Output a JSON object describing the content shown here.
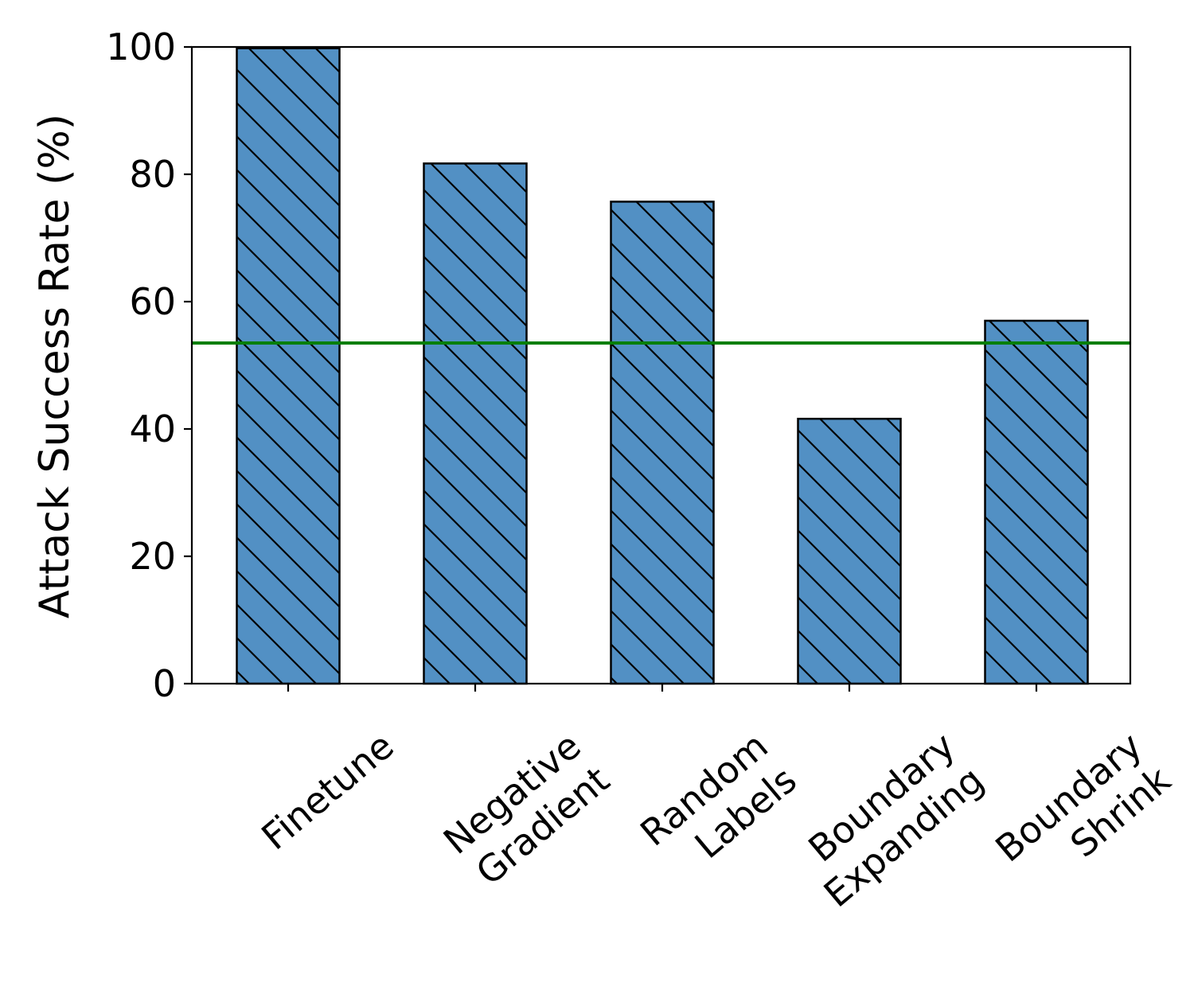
{
  "chart_data": {
    "type": "bar",
    "title": "",
    "xlabel": "",
    "ylabel": "Attack Success Rate (%)",
    "ylim": [
      0,
      100
    ],
    "yticks": [
      0,
      20,
      40,
      60,
      80,
      100
    ],
    "grid": false,
    "categories": [
      [
        "Finetune"
      ],
      [
        "Negative",
        "Gradient"
      ],
      [
        "Random",
        "Labels"
      ],
      [
        "Boundary",
        "Expanding"
      ],
      [
        "Boundary",
        "Shrink"
      ]
    ],
    "values": [
      99.8,
      81.7,
      75.7,
      41.6,
      57.0
    ],
    "reference_line": {
      "value": 53.5
    },
    "colors": {
      "bar_fill": "#5290c4",
      "bar_edge": "#000000",
      "hatch": "#000000",
      "reference_line": "#087f08",
      "axis": "#000000"
    },
    "hatch_style": "backslash"
  }
}
